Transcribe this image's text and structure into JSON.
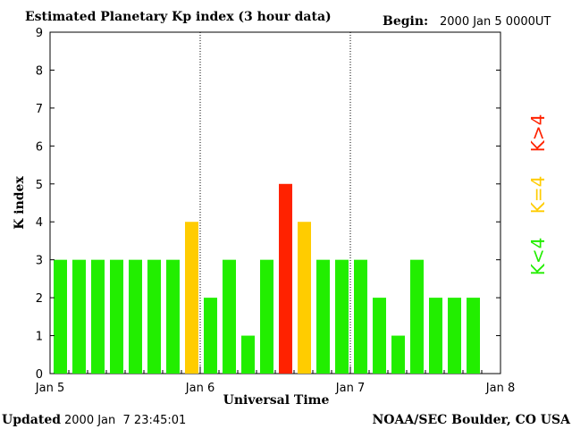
{
  "header": {
    "title": "Estimated Planetary Kp index (3 hour data)",
    "begin_label": "Begin:",
    "begin_value": "2000 Jan 5 0000UT"
  },
  "footer": {
    "updated_label": "Updated",
    "updated_value": "2000 Jan  7 23:45:01",
    "source": "NOAA/SEC Boulder, CO USA"
  },
  "legend": [
    {
      "label": "K<4",
      "color": "#22ee00"
    },
    {
      "label": "K=4",
      "color": "#ffcc00"
    },
    {
      "label": "K>4",
      "color": "#ff2200"
    }
  ],
  "chart_data": {
    "type": "bar",
    "title": "Estimated Planetary Kp index (3 hour data)",
    "xlabel": "Universal Time",
    "ylabel": "K index",
    "ylim": [
      0,
      9
    ],
    "yticks": [
      0,
      1,
      2,
      3,
      4,
      5,
      6,
      7,
      8,
      9
    ],
    "xticks": [
      "Jan 5",
      "Jan 6",
      "Jan 7",
      "Jan 8"
    ],
    "day_separators": [
      "Jan 6",
      "Jan 7"
    ],
    "interval_hours": 3,
    "values": [
      3,
      3,
      3,
      3,
      3,
      3,
      3,
      4,
      2,
      3,
      1,
      3,
      5,
      4,
      3,
      3,
      3,
      2,
      1,
      3,
      2,
      2,
      2
    ],
    "colors": {
      "low": "#22ee00",
      "equal4": "#ffcc00",
      "high": "#ff2200"
    }
  }
}
